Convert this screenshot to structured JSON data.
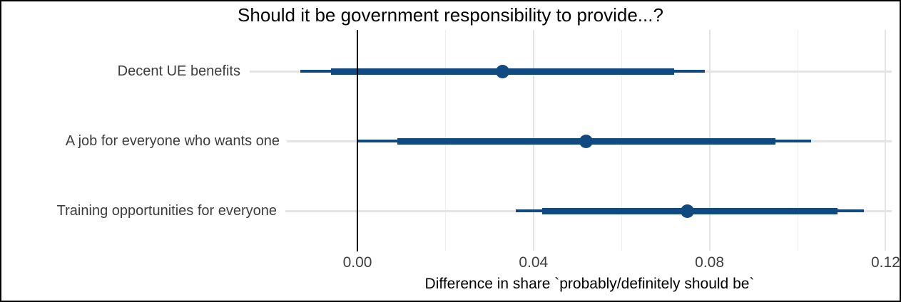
{
  "chart_data": {
    "type": "pointrange",
    "title": "Should it be government responsibility to provide...?",
    "xlabel": "Difference in share `probably/definitely should be`",
    "categories": [
      "Decent UE benefits",
      "A job for everyone who wants one",
      "Training opportunities for everyone"
    ],
    "series": [
      {
        "category": "Decent UE benefits",
        "estimate": 0.033,
        "ci_inner": [
          -0.006,
          0.072
        ],
        "ci_outer": [
          -0.013,
          0.079
        ]
      },
      {
        "category": "A job for everyone who wants one",
        "estimate": 0.052,
        "ci_inner": [
          0.009,
          0.095
        ],
        "ci_outer": [
          0.0,
          0.103
        ]
      },
      {
        "category": "Training opportunities for everyone",
        "estimate": 0.075,
        "ci_inner": [
          0.042,
          0.109
        ],
        "ci_outer": [
          0.036,
          0.115
        ]
      }
    ],
    "x_ticks": [
      {
        "value": 0.0,
        "label": "0.00"
      },
      {
        "value": 0.04,
        "label": "0.04"
      },
      {
        "value": 0.08,
        "label": "0.08"
      },
      {
        "value": 0.12,
        "label": "0.12"
      }
    ],
    "x_minor_gridlines": [
      0.02,
      0.06,
      0.1
    ],
    "vline_x": 0.0,
    "xlim": [
      -0.0164,
      0.1219
    ],
    "grid": true,
    "legend": "none",
    "colors": {
      "bar": "#104a81",
      "vline": "#000000",
      "grid_major": "#e3e3e3",
      "grid_minor": "#eeeeee",
      "row_line": "#e4e4e4",
      "axis_text": "#3f3f3f",
      "label_text": "#3d3d3d",
      "title_text": "#000000",
      "background": "#ffffff"
    }
  }
}
